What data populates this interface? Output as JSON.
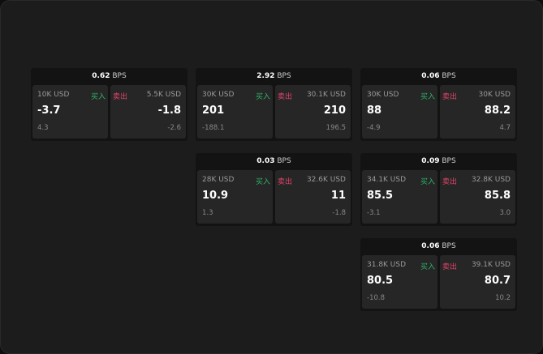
{
  "labels": {
    "buy": "买入",
    "sell": "卖出",
    "unit": "BPS"
  },
  "cards": [
    {
      "spread": "0.62",
      "bid_size": "10K USD",
      "bid": "-3.7",
      "bid_change": "4.3",
      "ask_size": "5.5K USD",
      "ask": "-1.8",
      "ask_change": "-2.6"
    },
    {
      "spread": "2.92",
      "bid_size": "30K USD",
      "bid": "201",
      "bid_change": "-188.1",
      "ask_size": "30.1K USD",
      "ask": "210",
      "ask_change": "196.5"
    },
    {
      "spread": "0.06",
      "bid_size": "30K USD",
      "bid": "88",
      "bid_change": "-4.9",
      "ask_size": "30K USD",
      "ask": "88.2",
      "ask_change": "4.7"
    },
    {
      "spread": "0.03",
      "bid_size": "28K USD",
      "bid": "10.9",
      "bid_change": "1.3",
      "ask_size": "32.6K USD",
      "ask": "11",
      "ask_change": "-1.8"
    },
    {
      "spread": "0.09",
      "bid_size": "34.1K USD",
      "bid": "85.5",
      "bid_change": "-3.1",
      "ask_size": "32.8K USD",
      "ask": "85.8",
      "ask_change": "3.0"
    },
    {
      "spread": "0.06",
      "bid_size": "31.8K USD",
      "bid": "80.5",
      "bid_change": "-10.8",
      "ask_size": "39.1K USD",
      "ask": "80.7",
      "ask_change": "10.2"
    }
  ]
}
